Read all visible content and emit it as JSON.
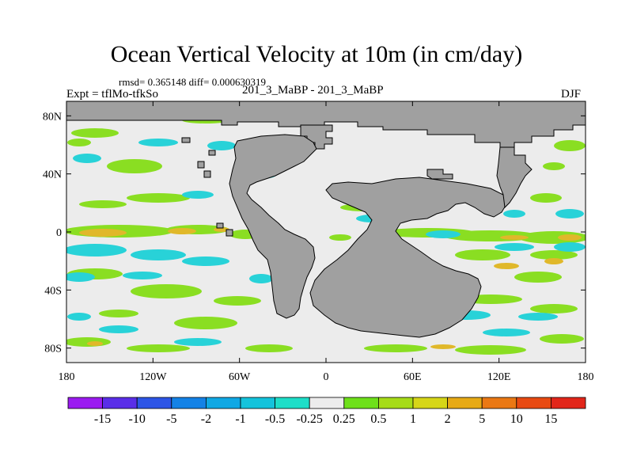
{
  "title": "Ocean Vertical Velocity at 10m (in cm/day)",
  "stats": "rmsd= 0.365148 diff= 0.000630319",
  "expt": "Expt = tflMo-tfkSo",
  "subtitle": "201_3_MaBP - 201_3_MaBP",
  "season": "DJF",
  "axes": {
    "x_ticks": [
      "180",
      "120W",
      "60W",
      "0",
      "60E",
      "120E",
      "180"
    ],
    "y_ticks": [
      "80N",
      "40N",
      "0",
      "40S",
      "80S"
    ],
    "xlim": [
      -180,
      180
    ],
    "ylim": [
      -90,
      90
    ]
  },
  "colorbar": {
    "labels": [
      "-15",
      "-10",
      "-5",
      "-2",
      "-1",
      "-0.5",
      "-0.25",
      "0.25",
      "0.5",
      "1",
      "2",
      "5",
      "10",
      "15"
    ],
    "colors": [
      "#9b1bf0",
      "#5a2ee8",
      "#2d55e6",
      "#1482e6",
      "#10a8e4",
      "#14c3dc",
      "#1edec8",
      "#ececec",
      "#6ee01a",
      "#a6dc18",
      "#d6d618",
      "#e7aa16",
      "#ea7814",
      "#e84a12",
      "#e2261a"
    ]
  },
  "colors": {
    "land": "#a0a0a0",
    "ocean_background": "#ececec",
    "upwelling": "#8ade22",
    "strong_upwelling": "#e0b82a",
    "downwelling": "#28d2d8"
  }
}
